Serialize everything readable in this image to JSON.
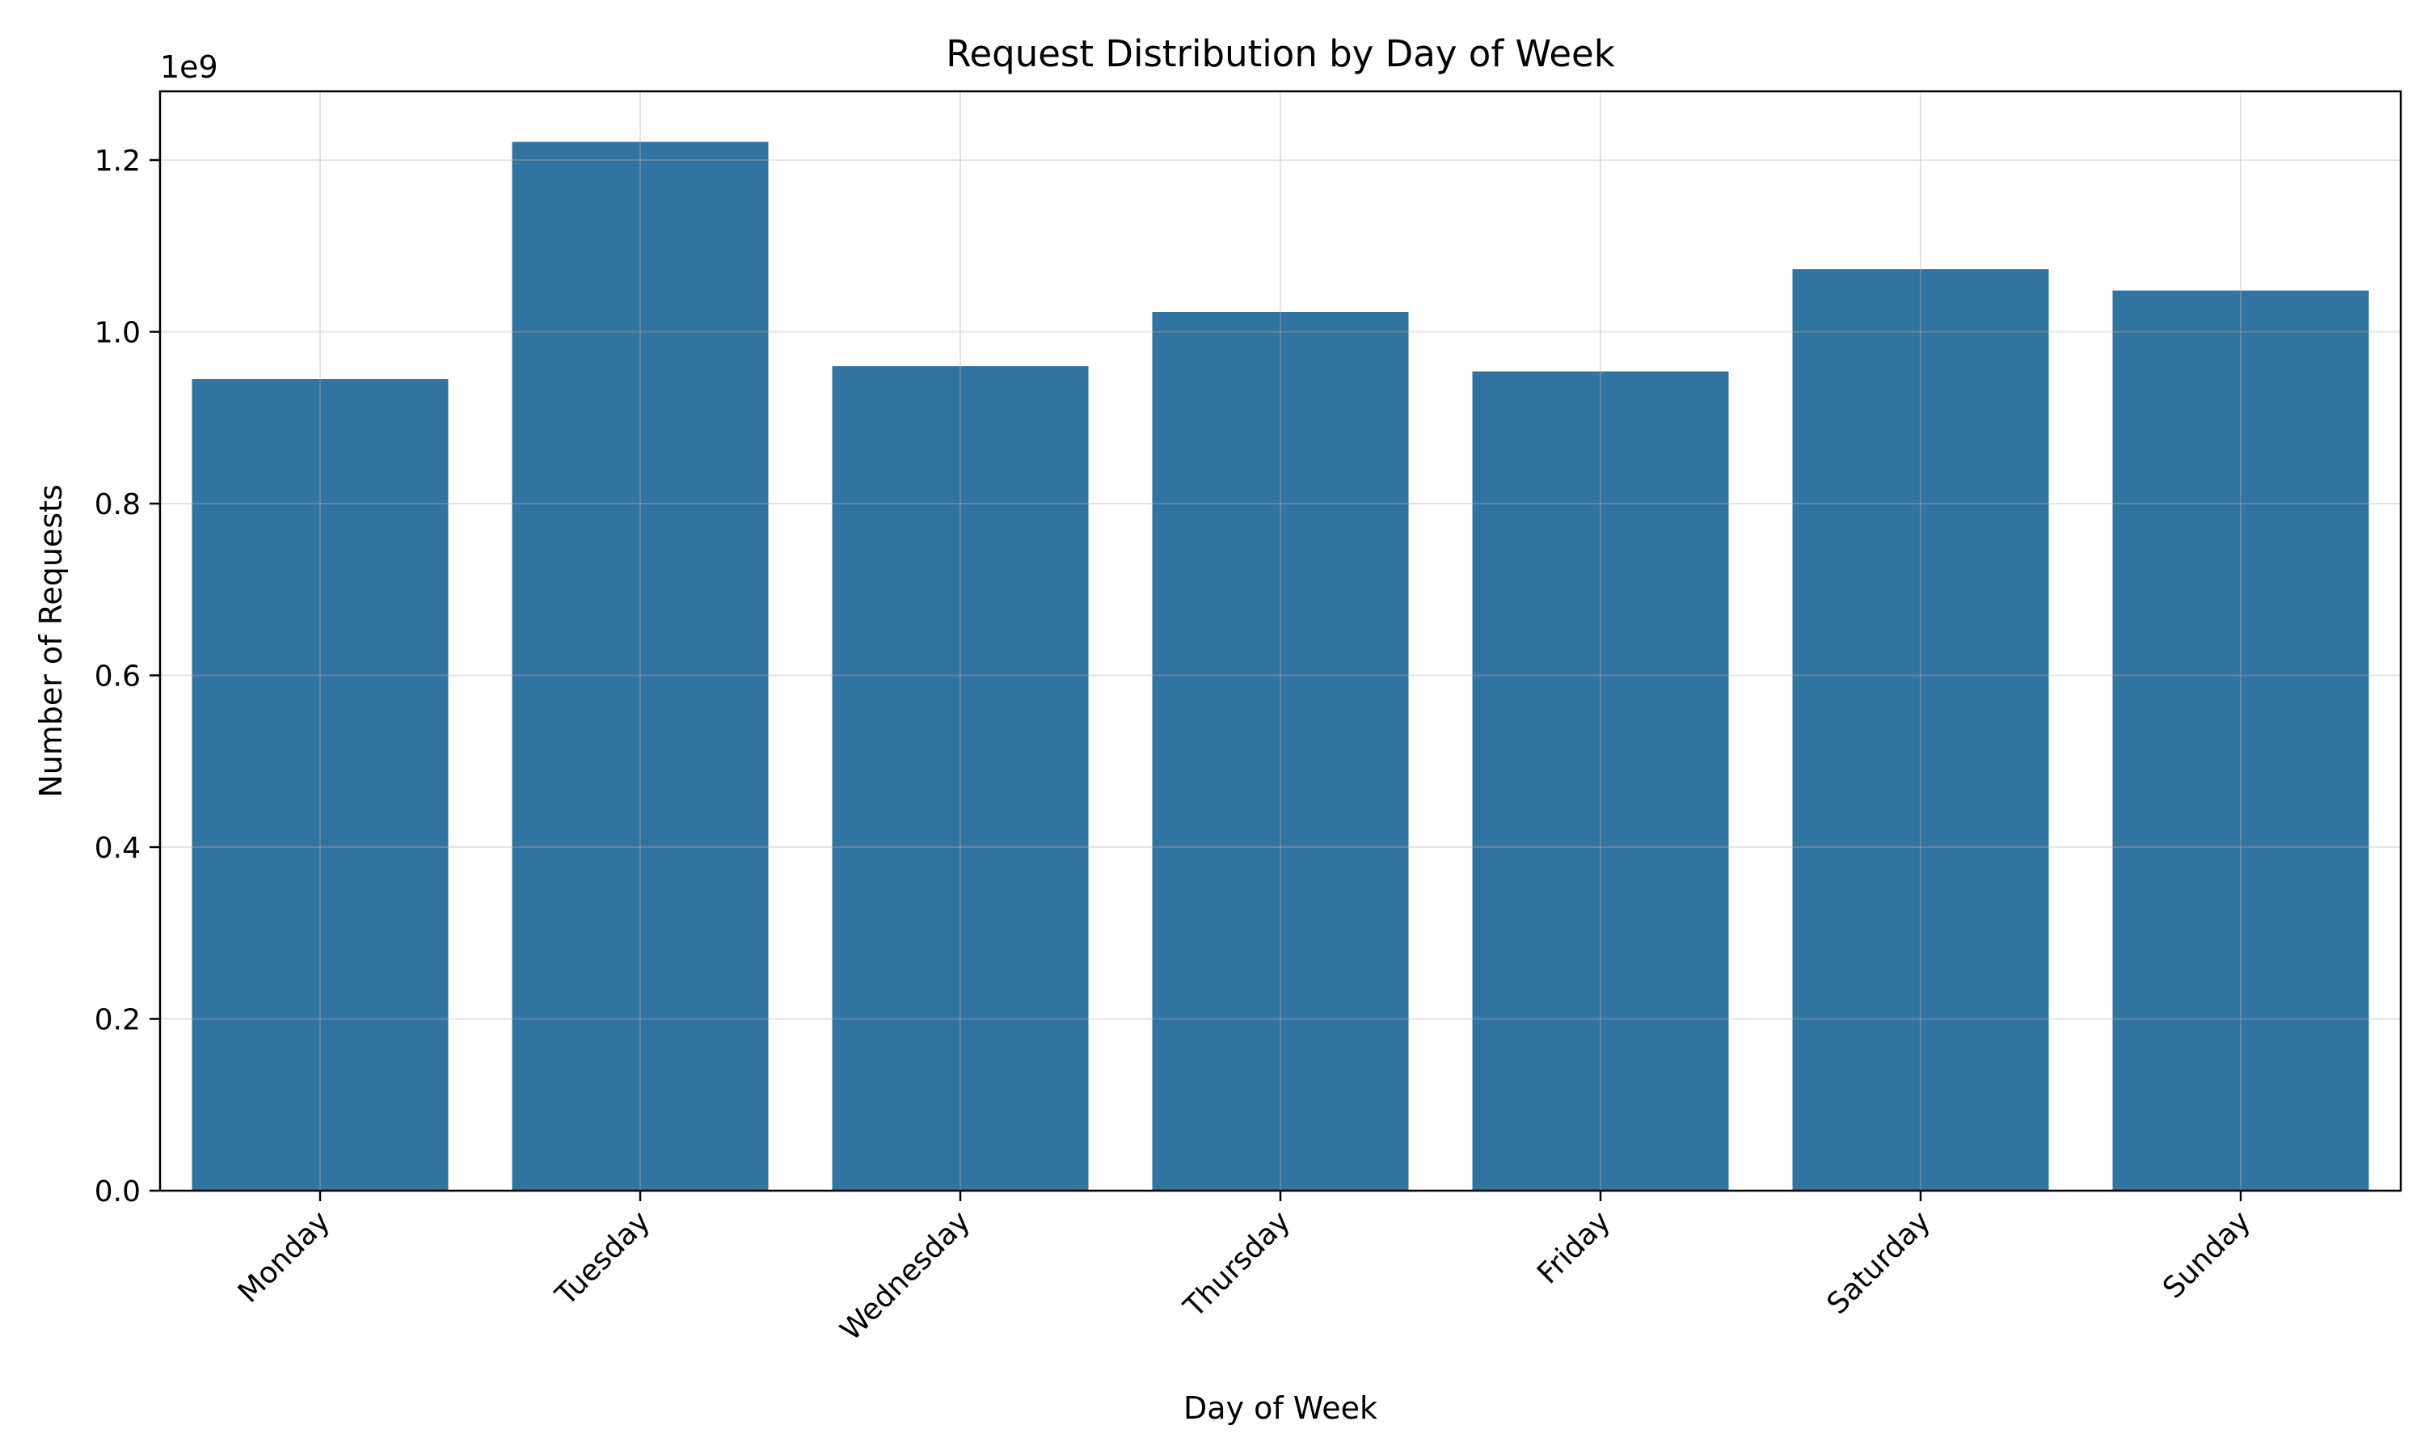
{
  "chart_data": {
    "type": "bar",
    "title": "Request Distribution by Day of Week",
    "xlabel": "Day of Week",
    "ylabel": "Number of Requests",
    "y_offset_label": "1e9",
    "categories": [
      "Monday",
      "Tuesday",
      "Wednesday",
      "Thursday",
      "Friday",
      "Saturday",
      "Sunday"
    ],
    "values": [
      945000000,
      1221000000,
      960000000,
      1023000000,
      954000000,
      1073000000,
      1048000000
    ],
    "ylim": [
      0,
      1280000000
    ],
    "yticks": [
      0,
      200000000,
      400000000,
      600000000,
      800000000,
      1000000000,
      1200000000
    ],
    "ytick_labels": [
      "0.0",
      "0.2",
      "0.4",
      "0.6",
      "0.8",
      "1.0",
      "1.2"
    ],
    "grid": true,
    "bar_color": "#3274a1"
  }
}
